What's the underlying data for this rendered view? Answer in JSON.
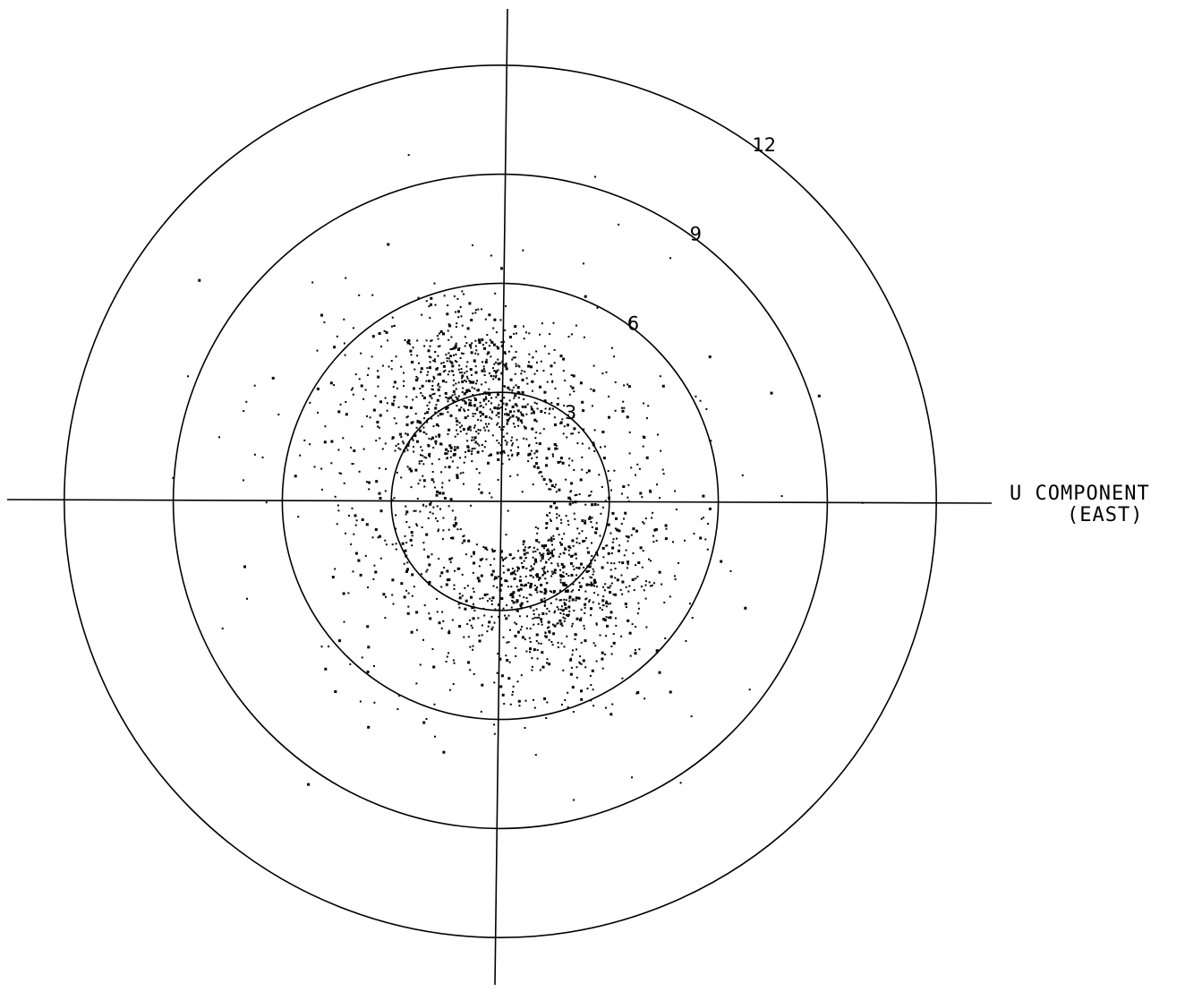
{
  "chart_data": {
    "type": "scatter",
    "title": "",
    "xlabel_line1": "U COMPONENT",
    "xlabel_line2": "(EAST)",
    "ylabel": "",
    "range_rings": [
      3,
      6,
      9,
      12
    ],
    "xlim": [
      -12,
      12
    ],
    "ylim": [
      -12,
      12
    ],
    "grid": false,
    "point_color": "#000000",
    "description_of_points": "dense cloud of wind vector endpoints concentrated between rings 3 and 6, sparser out to ring 12, with an empty region near the center",
    "clusters": [
      {
        "u": -1.0,
        "v": 3.0,
        "spread": 2.3,
        "count": 650
      },
      {
        "u": 1.5,
        "v": -2.5,
        "spread": 2.4,
        "count": 600
      },
      {
        "u": 0.0,
        "v": 0.0,
        "spread": 4.2,
        "count": 900
      },
      {
        "u": 0.0,
        "v": 0.0,
        "spread": 7.0,
        "count": 160
      }
    ]
  }
}
